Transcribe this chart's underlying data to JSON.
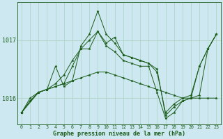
{
  "title": "Graphe pression niveau de la mer (hPa)",
  "background_color": "#cde8f0",
  "grid_color": "#b0d4c8",
  "line_color": "#1a5c1a",
  "xlim": [
    -0.5,
    23.5
  ],
  "ylim": [
    1015.55,
    1017.65
  ],
  "xticks": [
    0,
    1,
    2,
    3,
    4,
    5,
    6,
    7,
    8,
    9,
    10,
    11,
    12,
    13,
    14,
    15,
    16,
    17,
    18,
    19,
    20,
    21,
    22,
    23
  ],
  "yticks": [
    1016,
    1017
  ],
  "series": [
    {
      "x": [
        0,
        2,
        3,
        4,
        5,
        6,
        7,
        8,
        9,
        10,
        11,
        12,
        13,
        14,
        15,
        16,
        17,
        18,
        19,
        20,
        21,
        22,
        23
      ],
      "y": [
        1015.75,
        1016.1,
        1016.15,
        1016.55,
        1016.2,
        1016.3,
        1016.9,
        1017.1,
        1017.5,
        1017.1,
        1016.95,
        1016.75,
        1016.7,
        1016.65,
        1016.6,
        1016.5,
        1015.7,
        1015.85,
        1015.95,
        1016.0,
        1016.55,
        1016.85,
        1017.1
      ]
    },
    {
      "x": [
        0,
        1,
        2,
        3,
        4,
        5,
        6,
        7,
        8,
        9,
        10,
        11,
        12,
        13,
        14,
        15,
        16,
        17,
        18,
        19,
        20,
        21,
        22,
        23
      ],
      "y": [
        1015.75,
        1015.95,
        1016.1,
        1016.15,
        1016.2,
        1016.25,
        1016.55,
        1016.85,
        1016.85,
        1017.15,
        1016.95,
        1017.05,
        1016.75,
        1016.7,
        1016.65,
        1016.6,
        1016.45,
        1015.75,
        1015.9,
        1016.0,
        1016.05,
        1016.55,
        1016.85,
        1017.1
      ]
    },
    {
      "x": [
        0,
        1,
        2,
        3,
        4,
        5,
        6,
        7,
        8,
        9,
        10,
        11,
        12,
        13,
        14,
        15,
        16,
        17,
        18,
        19,
        20,
        21,
        22,
        23
      ],
      "y": [
        1015.75,
        1016.0,
        1016.1,
        1016.15,
        1016.2,
        1016.25,
        1016.3,
        1016.35,
        1016.4,
        1016.45,
        1016.45,
        1016.4,
        1016.35,
        1016.3,
        1016.25,
        1016.2,
        1016.15,
        1016.1,
        1016.05,
        1016.0,
        1016.0,
        1016.0,
        1016.0,
        1016.0
      ]
    },
    {
      "x": [
        0,
        1,
        2,
        3,
        4,
        5,
        6,
        7,
        8,
        9,
        10,
        11,
        12,
        13,
        14,
        15,
        16,
        17,
        18,
        19,
        20,
        21,
        22,
        23
      ],
      "y": [
        1015.75,
        1015.95,
        1016.1,
        1016.15,
        1016.25,
        1016.4,
        1016.65,
        1016.85,
        1017.0,
        1017.15,
        1016.9,
        1016.8,
        1016.65,
        1016.6,
        1016.55,
        1016.55,
        1016.1,
        1015.65,
        1015.75,
        1015.95,
        1016.0,
        1016.05,
        1016.85,
        1017.1
      ]
    }
  ]
}
